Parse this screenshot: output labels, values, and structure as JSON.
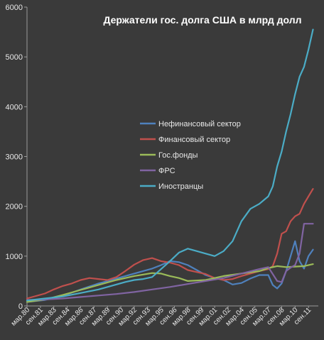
{
  "chart_data": {
    "type": "line",
    "title": "Держатели гос. долга США в млрд долл",
    "xlabel": "",
    "ylabel": "",
    "ylim": [
      0,
      6000
    ],
    "yticks": [
      0,
      1000,
      2000,
      3000,
      4000,
      5000,
      6000
    ],
    "grid": false,
    "legend_position": "center",
    "colors": {
      "background": "#3a3a3a",
      "axis": "#9a9a9a",
      "text": "#e8e8e8"
    },
    "x_tick_labels": [
      "мар.80",
      "сен.81",
      "мар.83",
      "сен.84",
      "мар.86",
      "сен.87",
      "мар.89",
      "сен.90",
      "мар.92",
      "сен.93",
      "мар.95",
      "сен.96",
      "мар.98",
      "сен.99",
      "мар.01",
      "сен.02",
      "мар.04",
      "сен.05",
      "мар.07",
      "сен.08",
      "мар.10",
      "сен.11"
    ],
    "x_years": [
      1980.0,
      1981.5,
      1983.0,
      1984.5,
      1986.0,
      1987.5,
      1989.0,
      1990.5,
      1992.0,
      1993.5,
      1995.0,
      1996.5,
      1998.0,
      1999.5,
      2001.0,
      2002.5,
      2004.0,
      2005.5,
      2007.0,
      2008.5,
      2010.0,
      2011.5
    ],
    "x_range": [
      1980.0,
      2012.6
    ],
    "series": [
      {
        "name": "Нефинансовый сектор",
        "color": "#4f81bd",
        "x": [
          1980,
          1982,
          1984,
          1986,
          1988,
          1990,
          1992,
          1994,
          1995,
          1996,
          1997,
          1998,
          1999,
          2000,
          2001,
          2002,
          2003,
          2004,
          2005,
          2006,
          2007,
          2007.5,
          2008,
          2008.5,
          2009,
          2009.5,
          2010,
          2010.5,
          2011,
          2011.5,
          2012
        ],
        "values": [
          80,
          120,
          200,
          330,
          450,
          550,
          650,
          750,
          820,
          900,
          880,
          820,
          720,
          620,
          560,
          520,
          430,
          460,
          550,
          620,
          620,
          420,
          350,
          450,
          700,
          1000,
          1300,
          900,
          750,
          1000,
          1130
        ]
      },
      {
        "name": "Финансовый сектор",
        "color": "#c0504d",
        "x": [
          1980,
          1981,
          1982,
          1983,
          1984,
          1985,
          1986,
          1987,
          1988,
          1989,
          1990,
          1991,
          1992,
          1993,
          1994,
          1995,
          1996,
          1997,
          1998,
          1999,
          2000,
          2001,
          2002,
          2003,
          2004,
          2005,
          2006,
          2007,
          2007.5,
          2008,
          2008.5,
          2009,
          2009.5,
          2010,
          2010.5,
          2011,
          2011.5,
          2012
        ],
        "values": [
          150,
          200,
          250,
          330,
          400,
          450,
          520,
          560,
          540,
          520,
          580,
          700,
          830,
          920,
          960,
          900,
          870,
          820,
          720,
          680,
          640,
          560,
          520,
          540,
          600,
          650,
          700,
          740,
          800,
          1050,
          1450,
          1500,
          1700,
          1800,
          1850,
          2050,
          2200,
          2350
        ]
      },
      {
        "name": "Гос.фонды",
        "color": "#9bbb59",
        "x": [
          1980,
          1982,
          1984,
          1986,
          1988,
          1990,
          1992,
          1993,
          1994,
          1995,
          1996,
          1997,
          1998,
          2000,
          2002,
          2004,
          2006,
          2007,
          2008,
          2009,
          2010,
          2011,
          2012
        ],
        "values": [
          80,
          130,
          220,
          320,
          420,
          520,
          600,
          630,
          660,
          650,
          600,
          560,
          500,
          520,
          600,
          650,
          700,
          760,
          800,
          780,
          790,
          800,
          840
        ]
      },
      {
        "name": "ФРС",
        "color": "#8064a2",
        "x": [
          1980,
          1982,
          1984,
          1986,
          1988,
          1990,
          1992,
          1994,
          1996,
          1998,
          2000,
          2002,
          2004,
          2006,
          2007,
          2008,
          2008.5,
          2009,
          2009.5,
          2010,
          2010.5,
          2011,
          2011.5,
          2012
        ],
        "values": [
          120,
          130,
          150,
          180,
          210,
          240,
          280,
          330,
          380,
          440,
          500,
          560,
          650,
          740,
          780,
          500,
          480,
          700,
          770,
          820,
          1050,
          1650,
          1650,
          1650
        ]
      },
      {
        "name": "Иностранцы",
        "color": "#4bacc6",
        "x": [
          1980,
          1982,
          1984,
          1986,
          1988,
          1990,
          1991,
          1992,
          1993,
          1994,
          1995,
          1996,
          1997,
          1998,
          1999,
          2000,
          2001,
          2002,
          2003,
          2004,
          2005,
          2006,
          2007,
          2007.5,
          2008,
          2008.5,
          2009,
          2009.5,
          2010,
          2010.5,
          2011,
          2011.5,
          2012
        ],
        "values": [
          110,
          150,
          190,
          260,
          330,
          430,
          480,
          520,
          540,
          580,
          740,
          900,
          1070,
          1150,
          1100,
          1050,
          1000,
          1100,
          1300,
          1700,
          1950,
          2050,
          2200,
          2400,
          2800,
          3100,
          3500,
          3850,
          4250,
          4600,
          4800,
          5150,
          5550
        ]
      }
    ]
  }
}
